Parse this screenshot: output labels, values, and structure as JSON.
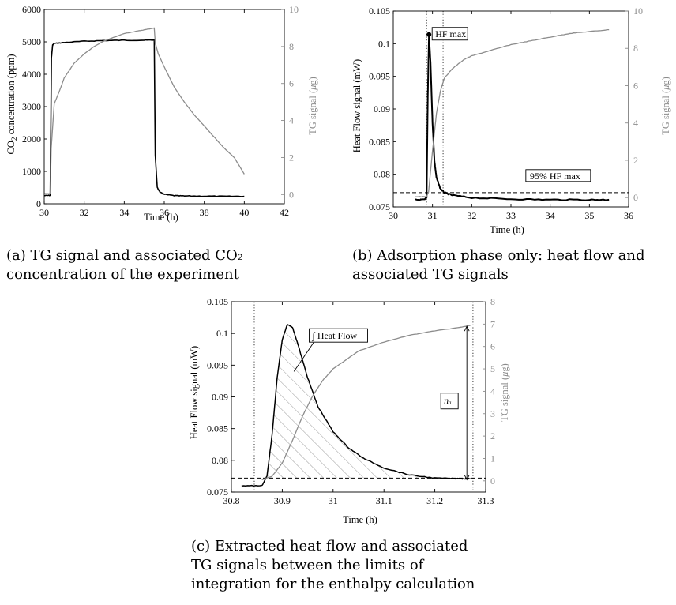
{
  "colors": {
    "tg": "#8c8c8c",
    "flow": "#000000",
    "axis": "#000000",
    "hatch": "#9a9a9a"
  },
  "charts": {
    "a": {
      "chart_data": {
        "type": "line",
        "xlabel": "Time (h)",
        "ylabel_left": "CO₂ concentration (ppm)",
        "ylabel_right": "TG signal (μg)",
        "xlim": [
          30,
          42
        ],
        "ylim_left": [
          0,
          6000
        ],
        "ylim_right": [
          -0.5,
          10
        ],
        "xticks": [
          30,
          32,
          34,
          36,
          38,
          40,
          42
        ],
        "yticks_left": [
          0,
          1000,
          2000,
          3000,
          4000,
          5000,
          6000
        ],
        "yticks_right": [
          0,
          2,
          4,
          6,
          8,
          10
        ],
        "series": [
          {
            "axis": "left",
            "color": "#000000",
            "x": [
              30,
              30.3,
              30.32,
              30.36,
              30.42,
              30.5,
              31,
              32,
              33,
              34,
              35,
              35.5,
              35.55,
              35.65,
              35.8,
              36,
              36.5,
              37,
              38,
              39,
              40
            ],
            "y": [
              250,
              260,
              1500,
              4500,
              4900,
              4950,
              4980,
              5020,
              5040,
              5050,
              5050,
              5060,
              1500,
              500,
              350,
              290,
              250,
              240,
              235,
              230,
              230
            ]
          },
          {
            "axis": "right",
            "color": "#8c8c8c",
            "x": [
              30,
              30.3,
              30.35,
              30.5,
              30.8,
              31,
              31.5,
              32,
              32.5,
              33,
              33.5,
              34,
              34.5,
              35,
              35.5,
              35.55,
              35.7,
              36,
              36.5,
              37,
              37.5,
              38,
              38.5,
              39,
              39.5,
              40
            ],
            "y": [
              0.05,
              0.05,
              2.5,
              4.9,
              5.7,
              6.3,
              7.1,
              7.6,
              8.0,
              8.3,
              8.5,
              8.7,
              8.8,
              8.9,
              9.0,
              8.2,
              7.6,
              6.9,
              5.8,
              5.0,
              4.3,
              3.7,
              3.1,
              2.5,
              2.0,
              1.1
            ]
          }
        ]
      },
      "caption": "(a) TG signal and associated CO₂ concentration of the experiment"
    },
    "b": {
      "chart_data": {
        "type": "line",
        "xlabel": "Time (h)",
        "ylabel_left": "Heat Flow signal (mW)",
        "ylabel_right": "TG signal (μg)",
        "xlim": [
          30,
          36
        ],
        "ylim_left": [
          0.075,
          0.105
        ],
        "ylim_right": [
          -0.5,
          10
        ],
        "xticks": [
          30,
          31,
          32,
          33,
          34,
          35,
          36
        ],
        "yticks_left": [
          0.075,
          0.08,
          0.085,
          0.09,
          0.095,
          0.1,
          0.105
        ],
        "yticks_right": [
          0,
          2,
          4,
          6,
          8,
          10
        ],
        "annotations": [
          "HF max",
          "95% HF max"
        ],
        "hline_left": 0.0772,
        "vlines_x": [
          30.85,
          31.27
        ],
        "series": [
          {
            "axis": "left",
            "color": "#000000",
            "x": [
              30.55,
              30.8,
              30.85,
              30.88,
              30.91,
              30.95,
              31.0,
              31.05,
              31.1,
              31.2,
              31.3,
              31.5,
              32,
              33,
              34,
              35,
              35.5
            ],
            "y": [
              0.0761,
              0.0761,
              0.0765,
              0.092,
              0.1014,
              0.097,
              0.088,
              0.082,
              0.0795,
              0.0778,
              0.0772,
              0.0768,
              0.0764,
              0.0762,
              0.0761,
              0.0761,
              0.0761
            ]
          },
          {
            "axis": "right",
            "color": "#8c8c8c",
            "x": [
              30.55,
              30.85,
              30.9,
              31.0,
              31.1,
              31.2,
              31.3,
              31.5,
              31.8,
              32,
              32.5,
              33,
              33.5,
              34,
              34.5,
              35,
              35.5
            ],
            "y": [
              0.05,
              0.05,
              0.3,
              2.5,
              4.5,
              5.7,
              6.4,
              6.9,
              7.4,
              7.6,
              7.9,
              8.2,
              8.4,
              8.6,
              8.8,
              8.9,
              9.0
            ]
          }
        ]
      },
      "caption": "(b) Adsorption phase only: heat flow and associated TG signals"
    },
    "c": {
      "chart_data": {
        "type": "area",
        "xlabel": "Time (h)",
        "ylabel_left": "Heat Flow signal (mW)",
        "ylabel_right": "TG signal (μg)",
        "xlim": [
          30.8,
          31.3
        ],
        "ylim_left": [
          0.075,
          0.105
        ],
        "ylim_right": [
          -0.5,
          8
        ],
        "xticks": [
          30.8,
          30.9,
          31,
          31.1,
          31.2,
          31.3
        ],
        "yticks_left": [
          0.075,
          0.08,
          0.085,
          0.09,
          0.095,
          0.1,
          0.105
        ],
        "yticks_right": [
          0,
          1,
          2,
          3,
          4,
          5,
          6,
          7,
          8
        ],
        "annotations": [
          "∫ Heat Flow",
          "nₐ"
        ],
        "hline_left": 0.0772,
        "vlines_x": [
          30.845,
          31.275
        ],
        "series": [
          {
            "axis": "left",
            "color": "#000000",
            "x": [
              30.82,
              30.86,
              30.87,
              30.88,
              30.89,
              30.9,
              30.91,
              30.92,
              30.93,
              30.95,
              30.97,
              31.0,
              31.03,
              31.06,
              31.1,
              31.15,
              31.2,
              31.25,
              31.27
            ],
            "y": [
              0.076,
              0.076,
              0.0775,
              0.084,
              0.093,
              0.099,
              0.1014,
              0.101,
              0.0985,
              0.093,
              0.0885,
              0.0845,
              0.082,
              0.0803,
              0.0788,
              0.0777,
              0.0772,
              0.0771,
              0.0771
            ]
          },
          {
            "axis": "right",
            "color": "#8c8c8c",
            "x": [
              30.86,
              30.88,
              30.9,
              30.92,
              30.94,
              30.96,
              30.98,
              31.0,
              31.05,
              31.1,
              31.15,
              31.2,
              31.25,
              31.27
            ],
            "y": [
              0.05,
              0.2,
              0.8,
              1.8,
              2.9,
              3.8,
              4.5,
              5.0,
              5.8,
              6.2,
              6.5,
              6.7,
              6.85,
              6.95
            ]
          }
        ]
      },
      "caption": "(c) Extracted heat flow and associated TG signals between the limits of integration for the enthalpy calculation"
    }
  }
}
